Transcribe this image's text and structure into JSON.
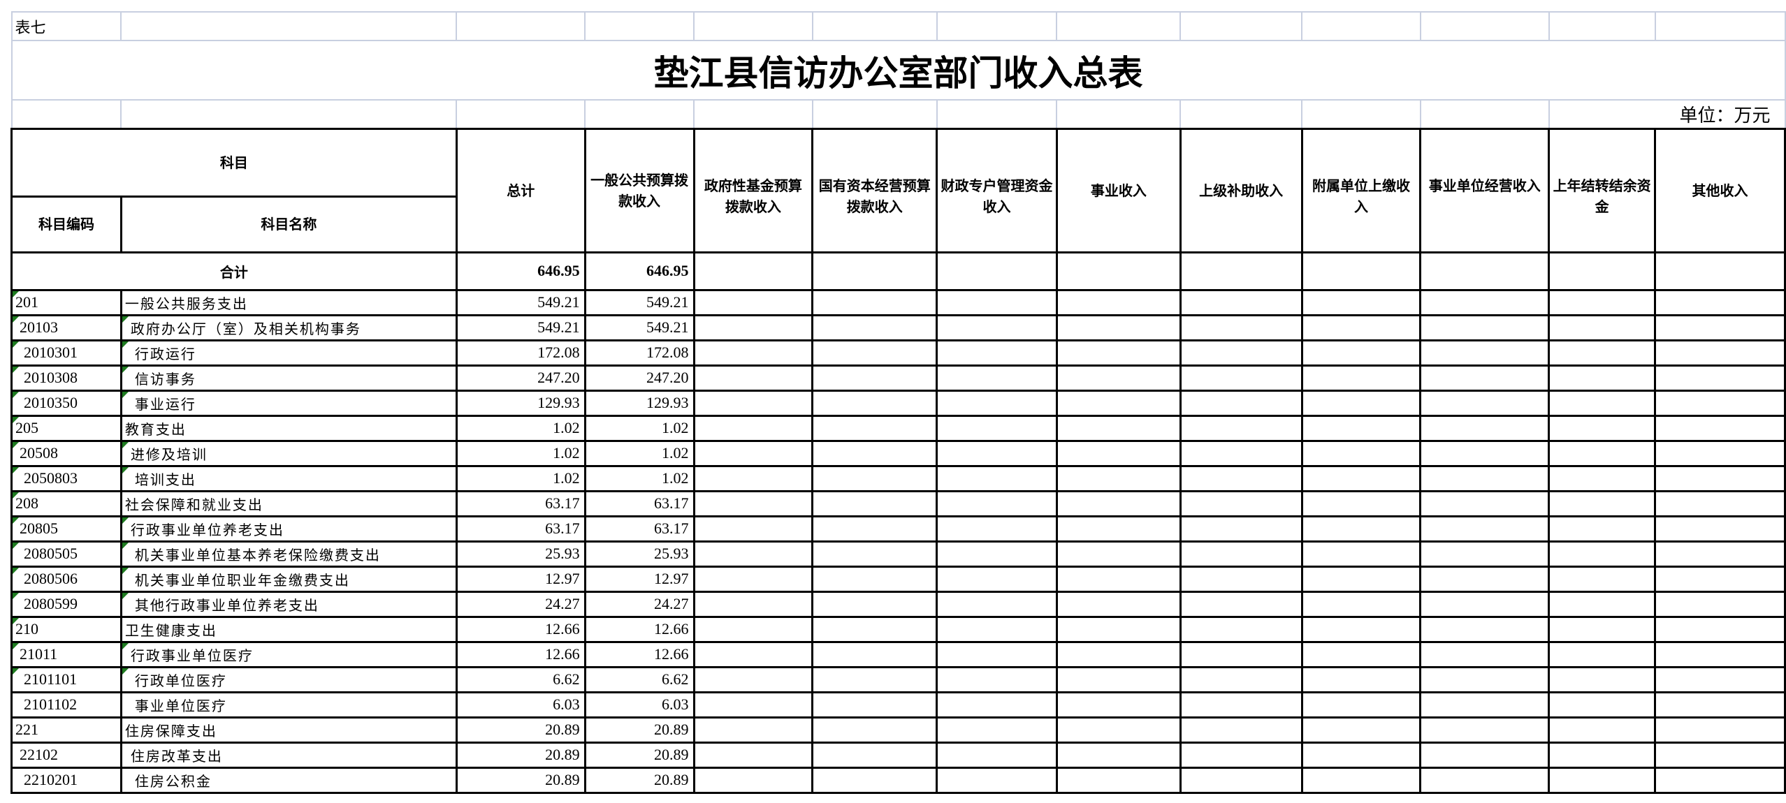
{
  "sheet_label": "表七",
  "title": "垫江县信访办公室部门收入总表",
  "unit": "单位：万元",
  "header": {
    "subject": "科目",
    "subject_code": "科目编码",
    "subject_name": "科目名称",
    "columns": [
      "总计",
      "一般公共预算拨款收入",
      "政府性基金预算拨款收入",
      "国有资本经营预算拨款收入",
      "财政专户管理资金收入",
      "事业收入",
      "上级补助收入",
      "附属单位上缴收入",
      "事业单位经营收入",
      "上年结转结余资金",
      "其他收入"
    ]
  },
  "total": {
    "label": "合计",
    "values": [
      "646.95",
      "646.95",
      "",
      "",
      "",
      "",
      "",
      "",
      "",
      "",
      ""
    ]
  },
  "rows": [
    {
      "code": "201",
      "name": "一般公共服务支出",
      "level": 1,
      "total": "549.21",
      "general": "549.21",
      "code_mark": true,
      "name_mark": false
    },
    {
      "code": "20103",
      "name": "政府办公厅（室）及相关机构事务",
      "level": 2,
      "total": "549.21",
      "general": "549.21",
      "code_mark": true,
      "name_mark": true
    },
    {
      "code": "2010301",
      "name": "行政运行",
      "level": 3,
      "total": "172.08",
      "general": "172.08",
      "code_mark": true,
      "name_mark": true
    },
    {
      "code": "2010308",
      "name": "信访事务",
      "level": 3,
      "total": "247.20",
      "general": "247.20",
      "code_mark": true,
      "name_mark": true
    },
    {
      "code": "2010350",
      "name": "事业运行",
      "level": 3,
      "total": "129.93",
      "general": "129.93",
      "code_mark": true,
      "name_mark": true
    },
    {
      "code": "205",
      "name": "教育支出",
      "level": 1,
      "total": "1.02",
      "general": "1.02",
      "code_mark": true,
      "name_mark": false
    },
    {
      "code": "20508",
      "name": "进修及培训",
      "level": 2,
      "total": "1.02",
      "general": "1.02",
      "code_mark": true,
      "name_mark": true
    },
    {
      "code": "2050803",
      "name": "培训支出",
      "level": 3,
      "total": "1.02",
      "general": "1.02",
      "code_mark": true,
      "name_mark": true
    },
    {
      "code": "208",
      "name": "社会保障和就业支出",
      "level": 1,
      "total": "63.17",
      "general": "63.17",
      "code_mark": true,
      "name_mark": false
    },
    {
      "code": "20805",
      "name": "行政事业单位养老支出",
      "level": 2,
      "total": "63.17",
      "general": "63.17",
      "code_mark": true,
      "name_mark": true
    },
    {
      "code": "2080505",
      "name": "机关事业单位基本养老保险缴费支出",
      "level": 3,
      "total": "25.93",
      "general": "25.93",
      "code_mark": true,
      "name_mark": true
    },
    {
      "code": "2080506",
      "name": "机关事业单位职业年金缴费支出",
      "level": 3,
      "total": "12.97",
      "general": "12.97",
      "code_mark": true,
      "name_mark": true
    },
    {
      "code": "2080599",
      "name": "其他行政事业单位养老支出",
      "level": 3,
      "total": "24.27",
      "general": "24.27",
      "code_mark": true,
      "name_mark": true
    },
    {
      "code": "210",
      "name": "卫生健康支出",
      "level": 1,
      "total": "12.66",
      "general": "12.66",
      "code_mark": true,
      "name_mark": false
    },
    {
      "code": "21011",
      "name": "行政事业单位医疗",
      "level": 2,
      "total": "12.66",
      "general": "12.66",
      "code_mark": true,
      "name_mark": true
    },
    {
      "code": "2101101",
      "name": "行政单位医疗",
      "level": 3,
      "total": "6.62",
      "general": "6.62",
      "code_mark": true,
      "name_mark": true
    },
    {
      "code": "2101102",
      "name": "事业单位医疗",
      "level": 3,
      "total": "6.03",
      "general": "6.03",
      "code_mark": false,
      "name_mark": false
    },
    {
      "code": "221",
      "name": "住房保障支出",
      "level": 1,
      "total": "20.89",
      "general": "20.89",
      "code_mark": false,
      "name_mark": false
    },
    {
      "code": "22102",
      "name": "住房改革支出",
      "level": 2,
      "total": "20.89",
      "general": "20.89",
      "code_mark": false,
      "name_mark": false
    },
    {
      "code": "2210201",
      "name": "住房公积金",
      "level": 3,
      "total": "20.89",
      "general": "20.89",
      "code_mark": false,
      "name_mark": false
    }
  ]
}
